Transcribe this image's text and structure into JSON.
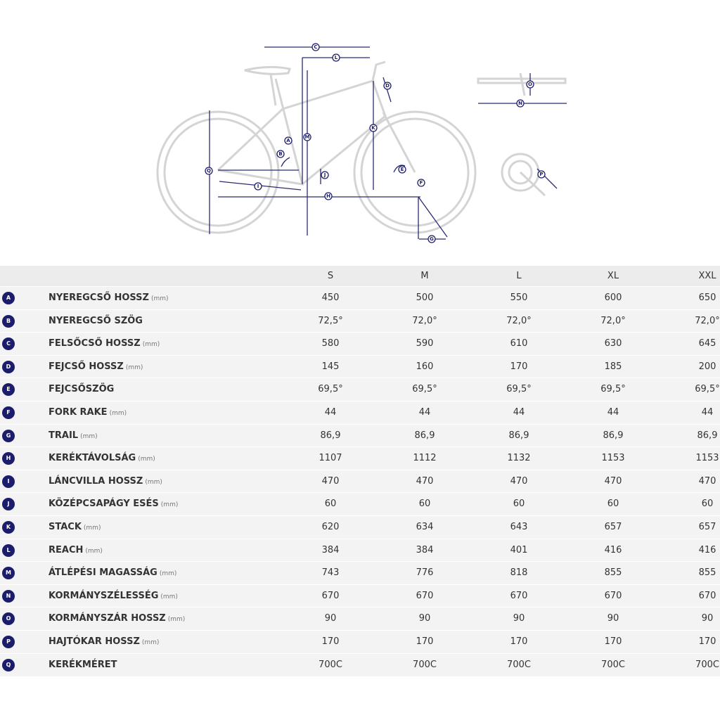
{
  "diagram": {
    "labels": [
      "C",
      "L",
      "D",
      "O",
      "N",
      "M",
      "K",
      "A",
      "B",
      "Q",
      "J",
      "E",
      "I",
      "H",
      "F",
      "G",
      "P"
    ]
  },
  "table": {
    "columns": [
      "S",
      "M",
      "L",
      "XL",
      "XXL"
    ],
    "rows": [
      {
        "key": "A",
        "name": "NYEREGCSŐ HOSSZ",
        "unit": "(mm)",
        "values": [
          "450",
          "500",
          "550",
          "600",
          "650"
        ]
      },
      {
        "key": "B",
        "name": "NYEREGCSŐ SZÖG",
        "values": [
          "72,5°",
          "72,0°",
          "72,0°",
          "72,0°",
          "72,0°"
        ]
      },
      {
        "key": "C",
        "name": "FELSŐCSŐ HOSSZ",
        "unit": "(mm)",
        "values": [
          "580",
          "590",
          "610",
          "630",
          "645"
        ]
      },
      {
        "key": "D",
        "name": "FEJCSŐ HOSSZ",
        "unit": "(mm)",
        "values": [
          "145",
          "160",
          "170",
          "185",
          "200"
        ]
      },
      {
        "key": "E",
        "name": "FEJCSŐSZÖG",
        "values": [
          "69,5°",
          "69,5°",
          "69,5°",
          "69,5°",
          "69,5°"
        ]
      },
      {
        "key": "F",
        "name": "FORK RAKE",
        "unit": "(mm)",
        "values": [
          "44",
          "44",
          "44",
          "44",
          "44"
        ]
      },
      {
        "key": "G",
        "name": "TRAIL",
        "unit": "(mm)",
        "values": [
          "86,9",
          "86,9",
          "86,9",
          "86,9",
          "86,9"
        ]
      },
      {
        "key": "H",
        "name": "KERÉKTÁVOLSÁG",
        "unit": "(mm)",
        "values": [
          "1107",
          "1112",
          "1132",
          "1153",
          "1153"
        ]
      },
      {
        "key": "I",
        "name": "LÁNCVILLA HOSSZ",
        "unit": "(mm)",
        "values": [
          "470",
          "470",
          "470",
          "470",
          "470"
        ]
      },
      {
        "key": "J",
        "name": "KÖZÉPCSAPÁGY ESÉS",
        "unit": "(mm)",
        "values": [
          "60",
          "60",
          "60",
          "60",
          "60"
        ]
      },
      {
        "key": "K",
        "name": "STACK",
        "unit": "(mm)",
        "values": [
          "620",
          "634",
          "643",
          "657",
          "657"
        ]
      },
      {
        "key": "L",
        "name": "REACH",
        "unit": "(mm)",
        "values": [
          "384",
          "384",
          "401",
          "416",
          "416"
        ]
      },
      {
        "key": "M",
        "name": "ÁTLÉPÉSI MAGASSÁG",
        "unit": "(mm)",
        "values": [
          "743",
          "776",
          "818",
          "855",
          "855"
        ]
      },
      {
        "key": "N",
        "name": "KORMÁNYSZÉLESSÉG",
        "unit": "(mm)",
        "values": [
          "670",
          "670",
          "670",
          "670",
          "670"
        ]
      },
      {
        "key": "O",
        "name": "KORMÁNYSZÁR HOSSZ",
        "unit": "(mm)",
        "values": [
          "90",
          "90",
          "90",
          "90",
          "90"
        ]
      },
      {
        "key": "P",
        "name": "HAJTÓKAR HOSSZ",
        "unit": "(mm)",
        "values": [
          "170",
          "170",
          "170",
          "170",
          "170"
        ]
      },
      {
        "key": "Q",
        "name": "KERÉKMÉRET",
        "values": [
          "700C",
          "700C",
          "700C",
          "700C",
          "700C"
        ]
      }
    ]
  }
}
